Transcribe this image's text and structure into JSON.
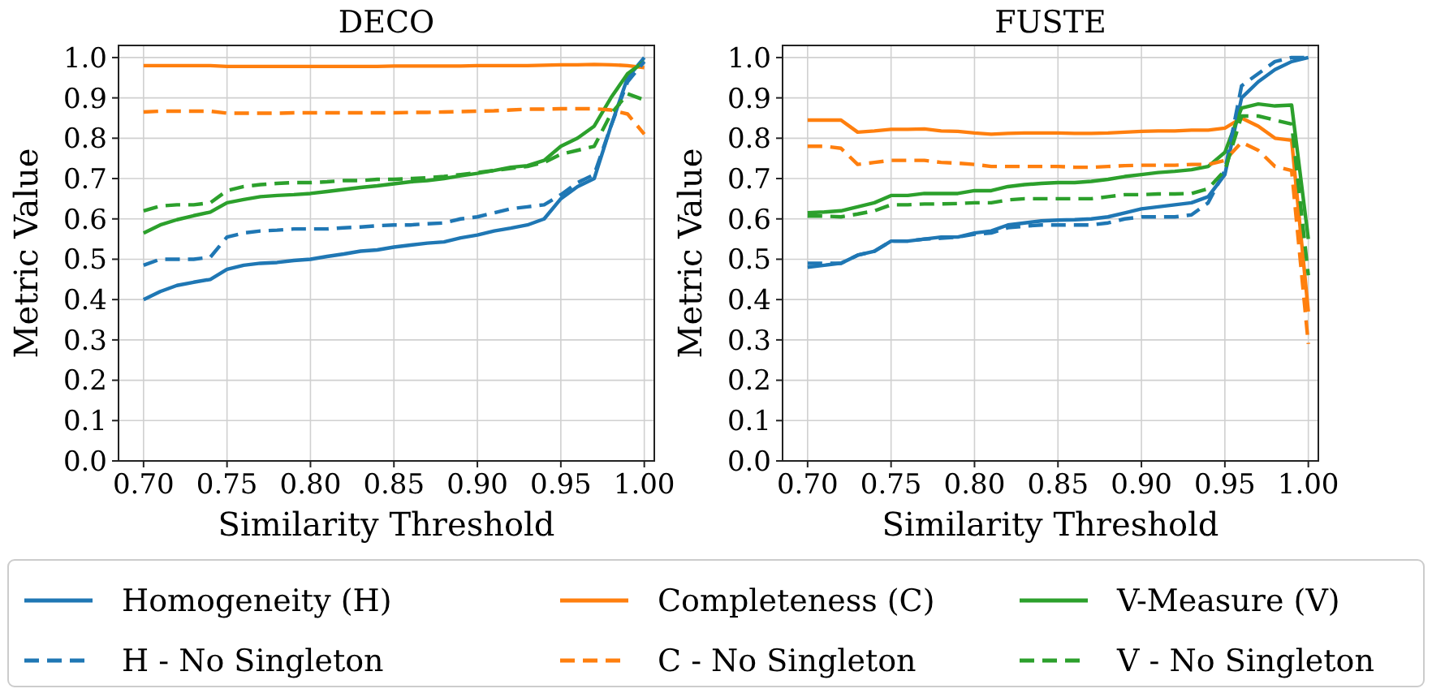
{
  "chart_data": [
    {
      "type": "line",
      "title": "DECO",
      "xlabel": "Similarity Threshold",
      "ylabel": "Metric Value",
      "grid": true,
      "legend": "bottom",
      "x": [
        0.7,
        0.71,
        0.72,
        0.73,
        0.74,
        0.75,
        0.76,
        0.77,
        0.78,
        0.79,
        0.8,
        0.81,
        0.82,
        0.83,
        0.84,
        0.85,
        0.86,
        0.87,
        0.88,
        0.89,
        0.9,
        0.91,
        0.92,
        0.93,
        0.94,
        0.95,
        0.96,
        0.97,
        0.98,
        0.99,
        1.0
      ],
      "xlim": [
        0.685,
        1.006
      ],
      "ylim": [
        0,
        1.03
      ],
      "xticks": [
        {
          "value": 0.7,
          "label": "0.70"
        },
        {
          "value": 0.75,
          "label": "0.75"
        },
        {
          "value": 0.8,
          "label": "0.80"
        },
        {
          "value": 0.85,
          "label": "0.85"
        },
        {
          "value": 0.9,
          "label": "0.90"
        },
        {
          "value": 0.95,
          "label": "0.95"
        },
        {
          "value": 1,
          "label": "1.00"
        }
      ],
      "yticks": [
        {
          "value": 0,
          "label": "0.0"
        },
        {
          "value": 0.1,
          "label": "0.1"
        },
        {
          "value": 0.2,
          "label": "0.2"
        },
        {
          "value": 0.3,
          "label": "0.3"
        },
        {
          "value": 0.4,
          "label": "0.4"
        },
        {
          "value": 0.5,
          "label": "0.5"
        },
        {
          "value": 0.6,
          "label": "0.6"
        },
        {
          "value": 0.7,
          "label": "0.7"
        },
        {
          "value": 0.8,
          "label": "0.8"
        },
        {
          "value": 0.9,
          "label": "0.9"
        },
        {
          "value": 1,
          "label": "1.0"
        }
      ],
      "series": [
        {
          "name": "Homogeneity (H)",
          "color": "#1f77b4",
          "line_style": "solid",
          "values": [
            0.4,
            0.42,
            0.435,
            0.443,
            0.45,
            0.475,
            0.485,
            0.49,
            0.492,
            0.497,
            0.5,
            0.507,
            0.513,
            0.52,
            0.523,
            0.53,
            0.535,
            0.54,
            0.543,
            0.553,
            0.56,
            0.57,
            0.577,
            0.585,
            0.6,
            0.65,
            0.68,
            0.7,
            0.83,
            0.95,
            1.0
          ]
        },
        {
          "name": "Completeness (C)",
          "color": "#ff7f0e",
          "line_style": "solid",
          "values": [
            0.98,
            0.98,
            0.98,
            0.98,
            0.98,
            0.978,
            0.978,
            0.978,
            0.978,
            0.978,
            0.978,
            0.978,
            0.978,
            0.978,
            0.978,
            0.979,
            0.979,
            0.979,
            0.979,
            0.979,
            0.98,
            0.98,
            0.98,
            0.98,
            0.981,
            0.982,
            0.982,
            0.983,
            0.982,
            0.98,
            0.975
          ]
        },
        {
          "name": "V-Measure (V)",
          "color": "#2ca02c",
          "line_style": "solid",
          "values": [
            0.565,
            0.585,
            0.598,
            0.608,
            0.617,
            0.64,
            0.648,
            0.655,
            0.658,
            0.66,
            0.663,
            0.668,
            0.673,
            0.678,
            0.682,
            0.687,
            0.692,
            0.695,
            0.7,
            0.707,
            0.713,
            0.72,
            0.728,
            0.732,
            0.745,
            0.78,
            0.8,
            0.83,
            0.9,
            0.96,
            0.99
          ]
        },
        {
          "name": "H - No Singleton",
          "color": "#1f77b4",
          "line_style": "dashed",
          "values": [
            0.485,
            0.5,
            0.5,
            0.5,
            0.505,
            0.555,
            0.565,
            0.57,
            0.572,
            0.575,
            0.575,
            0.575,
            0.578,
            0.58,
            0.583,
            0.585,
            0.585,
            0.588,
            0.59,
            0.6,
            0.605,
            0.615,
            0.625,
            0.63,
            0.635,
            0.66,
            0.69,
            0.71,
            0.83,
            0.94,
            0.99
          ]
        },
        {
          "name": "C - No Singleton",
          "color": "#ff7f0e",
          "line_style": "dashed",
          "values": [
            0.865,
            0.867,
            0.867,
            0.867,
            0.867,
            0.862,
            0.862,
            0.862,
            0.862,
            0.863,
            0.863,
            0.863,
            0.863,
            0.863,
            0.863,
            0.863,
            0.864,
            0.864,
            0.865,
            0.866,
            0.867,
            0.868,
            0.87,
            0.872,
            0.872,
            0.873,
            0.873,
            0.873,
            0.87,
            0.86,
            0.81
          ]
        },
        {
          "name": "V - No Singleton",
          "color": "#2ca02c",
          "line_style": "dashed",
          "values": [
            0.62,
            0.632,
            0.635,
            0.635,
            0.64,
            0.67,
            0.68,
            0.685,
            0.688,
            0.69,
            0.69,
            0.692,
            0.695,
            0.695,
            0.698,
            0.698,
            0.7,
            0.702,
            0.705,
            0.71,
            0.715,
            0.72,
            0.725,
            0.73,
            0.74,
            0.76,
            0.77,
            0.78,
            0.86,
            0.91,
            0.895
          ]
        }
      ]
    },
    {
      "type": "line",
      "title": "FUSTE",
      "xlabel": "Similarity Threshold",
      "ylabel": "Metric Value",
      "grid": true,
      "x": [
        0.7,
        0.71,
        0.72,
        0.73,
        0.74,
        0.75,
        0.76,
        0.77,
        0.78,
        0.79,
        0.8,
        0.81,
        0.82,
        0.83,
        0.84,
        0.85,
        0.86,
        0.87,
        0.88,
        0.89,
        0.9,
        0.91,
        0.92,
        0.93,
        0.94,
        0.95,
        0.96,
        0.97,
        0.98,
        0.99,
        1.0
      ],
      "xlim": [
        0.685,
        1.006
      ],
      "ylim": [
        0,
        1.03
      ],
      "xticks": [
        {
          "value": 0.7,
          "label": "0.70"
        },
        {
          "value": 0.75,
          "label": "0.75"
        },
        {
          "value": 0.8,
          "label": "0.80"
        },
        {
          "value": 0.85,
          "label": "0.85"
        },
        {
          "value": 0.9,
          "label": "0.90"
        },
        {
          "value": 0.95,
          "label": "0.95"
        },
        {
          "value": 1,
          "label": "1.00"
        }
      ],
      "yticks": [
        {
          "value": 0,
          "label": "0.0"
        },
        {
          "value": 0.1,
          "label": "0.1"
        },
        {
          "value": 0.2,
          "label": "0.2"
        },
        {
          "value": 0.3,
          "label": "0.3"
        },
        {
          "value": 0.4,
          "label": "0.4"
        },
        {
          "value": 0.5,
          "label": "0.5"
        },
        {
          "value": 0.6,
          "label": "0.6"
        },
        {
          "value": 0.7,
          "label": "0.7"
        },
        {
          "value": 0.8,
          "label": "0.8"
        },
        {
          "value": 0.9,
          "label": "0.9"
        },
        {
          "value": 1,
          "label": "1.0"
        }
      ],
      "series": [
        {
          "name": "Homogeneity (H)",
          "color": "#1f77b4",
          "line_style": "solid",
          "values": [
            0.48,
            0.485,
            0.49,
            0.51,
            0.52,
            0.545,
            0.545,
            0.55,
            0.555,
            0.555,
            0.565,
            0.57,
            0.585,
            0.59,
            0.595,
            0.597,
            0.598,
            0.6,
            0.605,
            0.615,
            0.625,
            0.63,
            0.635,
            0.64,
            0.655,
            0.71,
            0.9,
            0.94,
            0.97,
            0.99,
            1.0
          ]
        },
        {
          "name": "Completeness (C)",
          "color": "#ff7f0e",
          "line_style": "solid",
          "values": [
            0.845,
            0.845,
            0.845,
            0.815,
            0.818,
            0.822,
            0.822,
            0.823,
            0.818,
            0.817,
            0.813,
            0.81,
            0.812,
            0.813,
            0.813,
            0.813,
            0.812,
            0.812,
            0.813,
            0.815,
            0.817,
            0.818,
            0.818,
            0.82,
            0.82,
            0.825,
            0.85,
            0.83,
            0.8,
            0.795,
            0.37
          ]
        },
        {
          "name": "V-Measure (V)",
          "color": "#2ca02c",
          "line_style": "solid",
          "values": [
            0.615,
            0.617,
            0.62,
            0.63,
            0.64,
            0.658,
            0.658,
            0.663,
            0.663,
            0.663,
            0.67,
            0.67,
            0.68,
            0.685,
            0.688,
            0.69,
            0.69,
            0.693,
            0.698,
            0.705,
            0.71,
            0.715,
            0.718,
            0.722,
            0.73,
            0.765,
            0.875,
            0.885,
            0.88,
            0.882,
            0.55
          ]
        },
        {
          "name": "H - No Singleton",
          "color": "#1f77b4",
          "line_style": "dashed",
          "values": [
            0.49,
            0.49,
            0.49,
            0.51,
            0.52,
            0.545,
            0.545,
            0.55,
            0.552,
            0.555,
            0.562,
            0.565,
            0.578,
            0.582,
            0.585,
            0.585,
            0.585,
            0.585,
            0.59,
            0.6,
            0.605,
            0.605,
            0.605,
            0.61,
            0.64,
            0.72,
            0.93,
            0.96,
            0.99,
            1.0,
            1.0
          ]
        },
        {
          "name": "C - No Singleton",
          "color": "#ff7f0e",
          "line_style": "dashed",
          "values": [
            0.78,
            0.78,
            0.775,
            0.735,
            0.74,
            0.745,
            0.745,
            0.745,
            0.74,
            0.738,
            0.735,
            0.73,
            0.73,
            0.73,
            0.73,
            0.73,
            0.728,
            0.728,
            0.73,
            0.732,
            0.733,
            0.733,
            0.733,
            0.735,
            0.735,
            0.745,
            0.79,
            0.77,
            0.73,
            0.72,
            0.29
          ]
        },
        {
          "name": "V - No Singleton",
          "color": "#2ca02c",
          "line_style": "dashed",
          "values": [
            0.607,
            0.607,
            0.605,
            0.612,
            0.62,
            0.635,
            0.635,
            0.637,
            0.637,
            0.638,
            0.64,
            0.64,
            0.647,
            0.65,
            0.65,
            0.65,
            0.65,
            0.65,
            0.655,
            0.66,
            0.66,
            0.662,
            0.662,
            0.663,
            0.675,
            0.72,
            0.855,
            0.855,
            0.845,
            0.835,
            0.46
          ]
        }
      ]
    }
  ]
}
